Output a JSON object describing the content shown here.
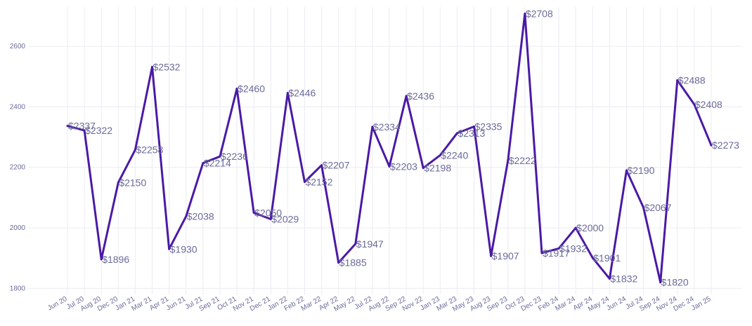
{
  "colors": {
    "line": "#4a1aa6",
    "grid": "#ececf2",
    "text": "#6a6a9a"
  },
  "chart_data": {
    "type": "line",
    "title": "",
    "xlabel": "",
    "ylabel": "",
    "ylim": [
      1780,
      2730
    ],
    "yticks": [
      1800,
      2000,
      2200,
      2400,
      2600
    ],
    "grid": true,
    "legend": "none",
    "label_prefix": "$",
    "categories": [
      "Jun 20",
      "Jul 20",
      "Aug 20",
      "Dec 20",
      "Jan 21",
      "Mar 21",
      "Apr 21",
      "Jun 21",
      "Jul 21",
      "Sep 21",
      "Oct 21",
      "Nov 21",
      "Dec 21",
      "Jan 22",
      "Feb 22",
      "Mar 22",
      "Apr 22",
      "May 22",
      "Jul 22",
      "Aug 22",
      "Sep 22",
      "Nov 22",
      "Jan 23",
      "Mar 23",
      "May 23",
      "Aug 23",
      "Sep 23",
      "Oct 23",
      "Dec 23",
      "Feb 24",
      "Mar 24",
      "Apr 24",
      "May 24",
      "Jun 24",
      "Jul 24",
      "Sep 24",
      "Nov 24",
      "Dec 24",
      "Jan 25"
    ],
    "series": [
      {
        "values": [
          2337,
          2322,
          1896,
          2150,
          2258,
          2532,
          1930,
          2038,
          2214,
          2236,
          2460,
          2050,
          2029,
          2446,
          2152,
          2207,
          1885,
          1947,
          2334,
          2203,
          2436,
          2198,
          2240,
          2313,
          2335,
          1907,
          2222,
          2708,
          1917,
          1932,
          2000,
          1901,
          1832,
          2190,
          2067,
          1820,
          2488,
          2408,
          2273
        ]
      }
    ]
  }
}
